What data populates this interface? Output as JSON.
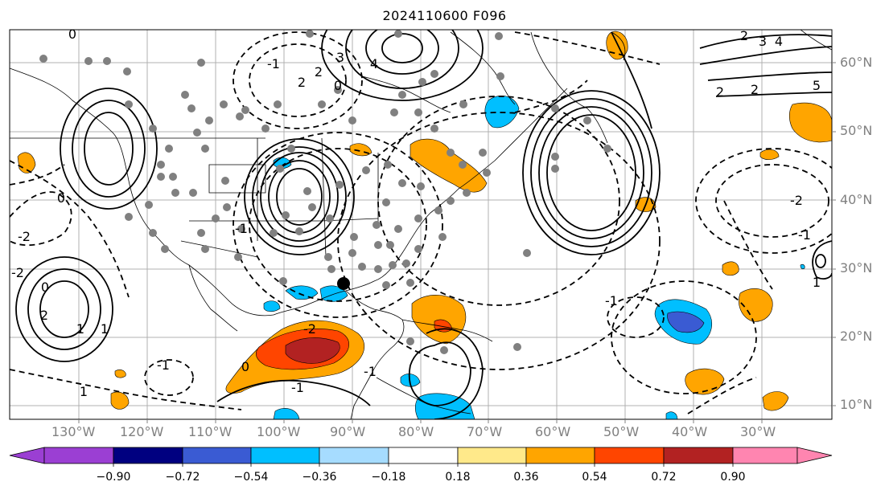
{
  "title": "2024110600 F096",
  "lon_labels": [
    "130°W",
    "120°W",
    "110°W",
    "100°W",
    "90°W",
    "80°W",
    "70°W",
    "60°W",
    "50°W",
    "40°W",
    "30°W"
  ],
  "lat_labels": [
    "60°N",
    "50°N",
    "40°N",
    "30°N",
    "20°N",
    "10°N"
  ],
  "colorbar": {
    "tick_labels": [
      "−0.90",
      "−0.72",
      "−0.54",
      "−0.36",
      "−0.18",
      "0.18",
      "0.36",
      "0.54",
      "0.72",
      "0.90"
    ],
    "colors": [
      "#9b3fd3",
      "#000080",
      "#3a5bd3",
      "#00bfff",
      "#a6dcff",
      "#ffffff",
      "#ffe98a",
      "#ffa500",
      "#ff4500",
      "#b22222",
      "#ff85b0"
    ]
  },
  "contour_labels": [
    "3",
    "4",
    "2",
    "0",
    "2",
    "3",
    "4",
    "5",
    "2",
    "2",
    "0",
    "-2",
    "2",
    "0",
    "-2",
    "-1",
    "1",
    "-1",
    "2",
    "-2",
    "1",
    "0",
    "-1",
    "-1",
    "1",
    "-1",
    "-1",
    "-1",
    "1",
    "0",
    "-2"
  ],
  "storm_marker": "black-dot"
}
